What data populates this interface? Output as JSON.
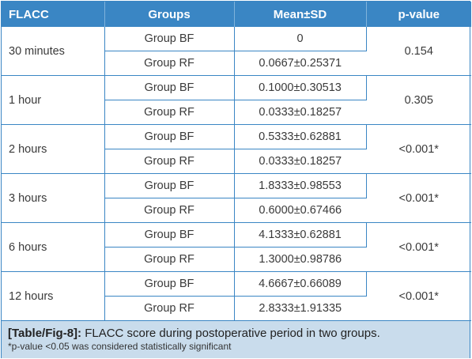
{
  "table": {
    "headers": [
      "FLACC",
      "Groups",
      "Mean±SD",
      "p-value"
    ],
    "rows": [
      {
        "time": "30 minutes",
        "p": "0.154",
        "groups": [
          {
            "group": "Group BF",
            "mean": "0"
          },
          {
            "group": "Group RF",
            "mean": "0.0667±0.25371"
          }
        ]
      },
      {
        "time": "1 hour",
        "p": "0.305",
        "groups": [
          {
            "group": "Group BF",
            "mean": "0.1000±0.30513"
          },
          {
            "group": "Group RF",
            "mean": "0.0333±0.18257"
          }
        ]
      },
      {
        "time": "2 hours",
        "p": "<0.001*",
        "groups": [
          {
            "group": "Group BF",
            "mean": "0.5333±0.62881"
          },
          {
            "group": "Group RF",
            "mean": "0.0333±0.18257"
          }
        ]
      },
      {
        "time": "3 hours",
        "p": "<0.001*",
        "groups": [
          {
            "group": "Group BF",
            "mean": "1.8333±0.98553"
          },
          {
            "group": "Group RF",
            "mean": "0.6000±0.67466"
          }
        ]
      },
      {
        "time": "6 hours",
        "p": "<0.001*",
        "groups": [
          {
            "group": "Group BF",
            "mean": "4.1333±0.62881"
          },
          {
            "group": "Group RF",
            "mean": "1.3000±0.98786"
          }
        ]
      },
      {
        "time": "12 hours",
        "p": "<0.001*",
        "groups": [
          {
            "group": "Group BF",
            "mean": "4.6667±0.66089"
          },
          {
            "group": "Group RF",
            "mean": "2.8333±1.91335"
          }
        ]
      }
    ]
  },
  "caption": {
    "tag": "[Table/Fig-8]:",
    "text": " FLACC score during postoperative period in two groups.",
    "note": "*p-value <0.05 was considered statistically significant"
  },
  "colors": {
    "header": "#3a86c4",
    "caption_bg": "#c9dcec"
  }
}
